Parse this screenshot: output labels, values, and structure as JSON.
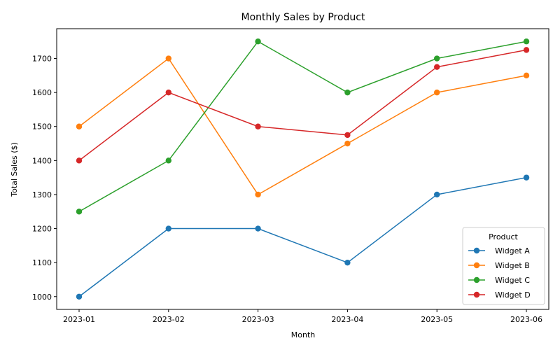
{
  "chart_data": {
    "type": "line",
    "title": "Monthly Sales by Product",
    "xlabel": "Month",
    "ylabel": "Total Sales ($)",
    "categories": [
      "2023-01",
      "2023-02",
      "2023-03",
      "2023-04",
      "2023-05",
      "2023-06"
    ],
    "ylim": [
      962.5,
      1787.5
    ],
    "yticks": [
      1000,
      1100,
      1200,
      1300,
      1400,
      1500,
      1600,
      1700
    ],
    "grid": false,
    "markers": true,
    "legend": {
      "title": "Product",
      "placement": "lower-right"
    },
    "series": [
      {
        "name": "Widget A",
        "color": "#1f77b4",
        "values": [
          1000,
          1200,
          1200,
          1100,
          1300,
          1350
        ]
      },
      {
        "name": "Widget B",
        "color": "#ff7f0e",
        "values": [
          1500,
          1700,
          1300,
          1450,
          1600,
          1650
        ]
      },
      {
        "name": "Widget C",
        "color": "#2ca02c",
        "values": [
          1250,
          1400,
          1750,
          1600,
          1700,
          1750
        ]
      },
      {
        "name": "Widget D",
        "color": "#d62728",
        "values": [
          1400,
          1600,
          1500,
          1475,
          1675,
          1725
        ]
      }
    ]
  }
}
